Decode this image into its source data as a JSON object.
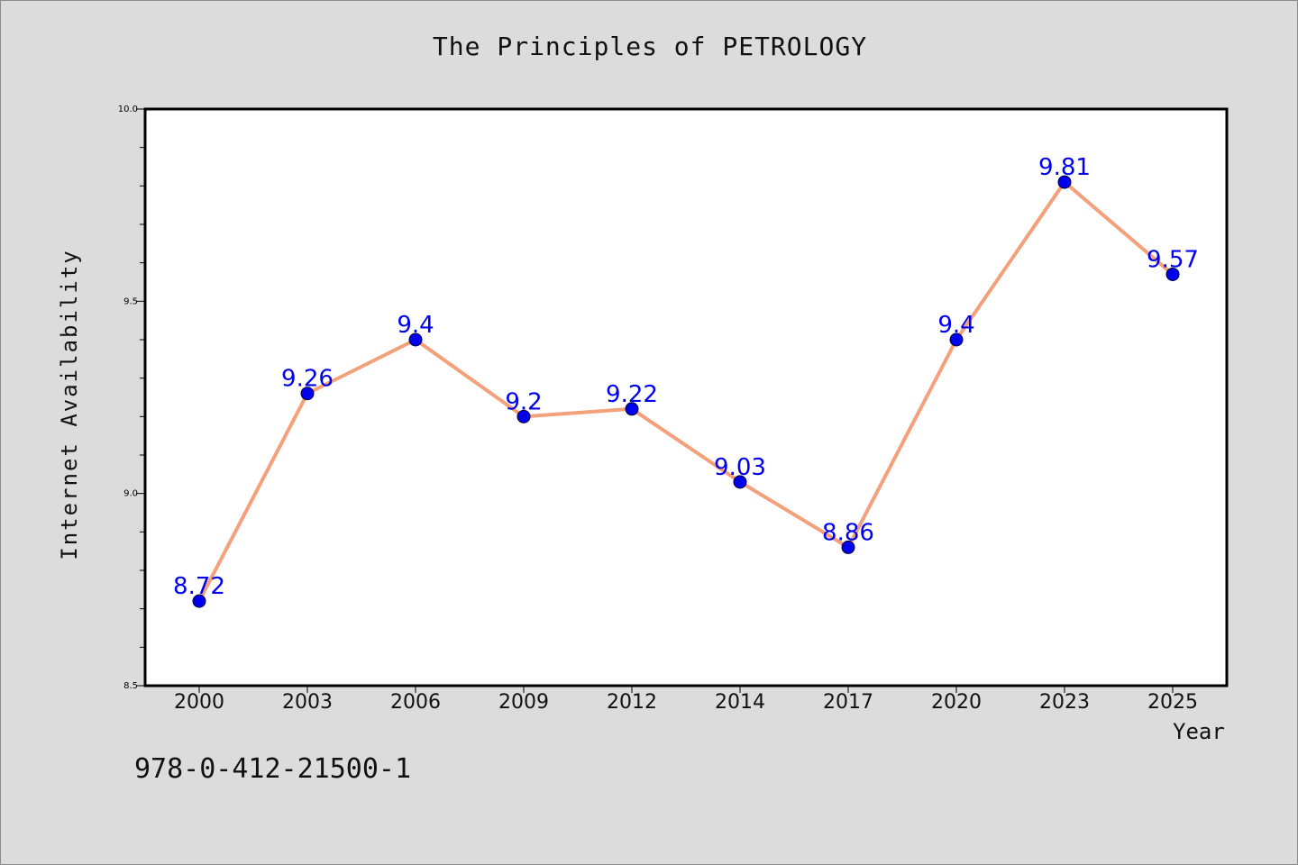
{
  "chart_data": {
    "type": "line",
    "title": "The Principles of PETROLOGY",
    "xlabel": "Year",
    "ylabel": "Internet Availability",
    "categories": [
      "2000",
      "2003",
      "2006",
      "2009",
      "2012",
      "2014",
      "2017",
      "2020",
      "2023",
      "2025"
    ],
    "values": [
      8.72,
      9.26,
      9.4,
      9.2,
      9.22,
      9.03,
      8.86,
      9.4,
      9.81,
      9.57
    ],
    "data_labels": [
      "8.72",
      "9.26",
      "9.4",
      "9.2",
      "9.22",
      "9.03",
      "8.86",
      "9.4",
      "9.81",
      "9.57"
    ],
    "ylim": [
      8.5,
      10.0
    ],
    "yticks": [
      "8.5",
      "9.0",
      "9.5",
      "10.0"
    ],
    "grid": false,
    "line_color": "#f4a07a",
    "marker_color": "#0000ee",
    "label_color": "#0000ee"
  },
  "footer": {
    "code": "978-0-412-21500-1"
  }
}
